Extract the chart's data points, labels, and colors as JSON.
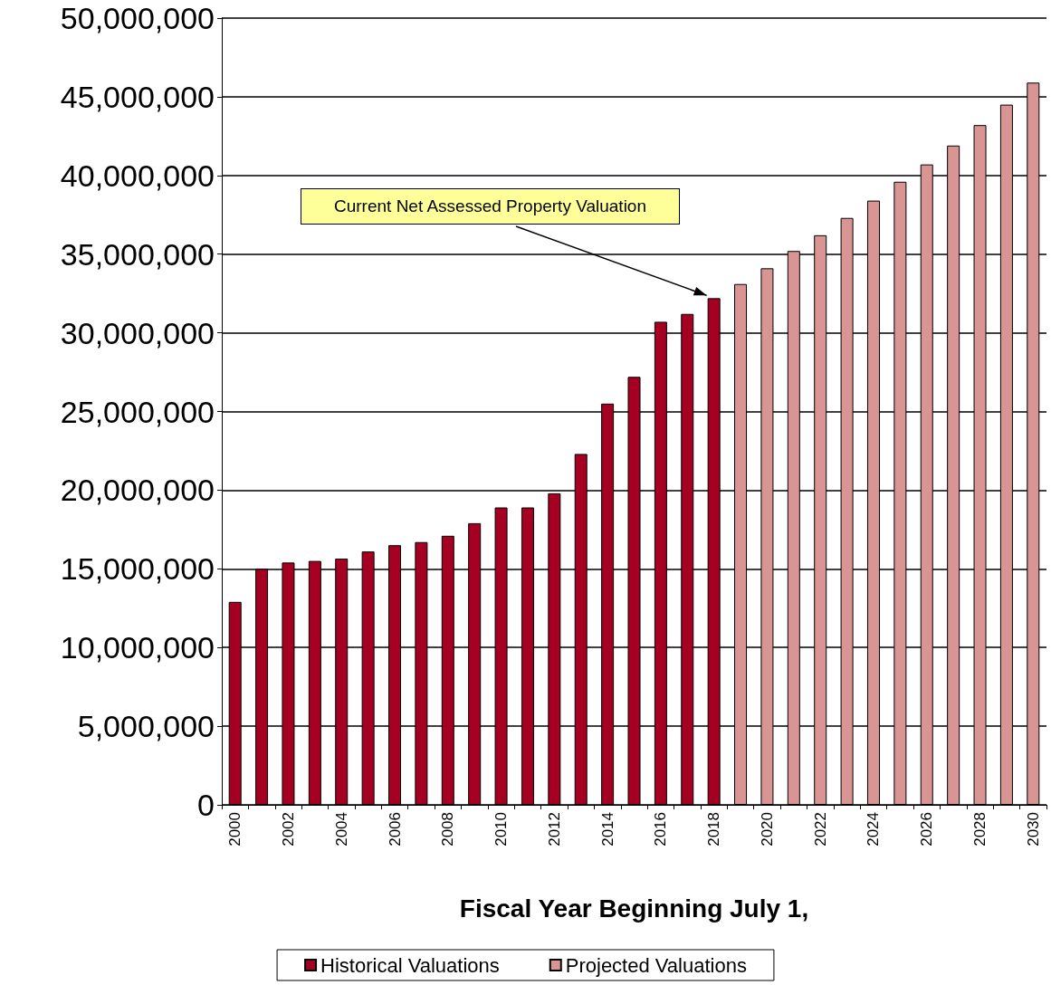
{
  "chart_data": {
    "type": "bar",
    "xlabel": "Fiscal Year Beginning July 1,",
    "categories": [
      "2000",
      null,
      "2002",
      null,
      "2004",
      null,
      "2006",
      null,
      "2008",
      null,
      "2010",
      null,
      "2012",
      null,
      "2014",
      null,
      "2016",
      null,
      "2018",
      null,
      "2020",
      null,
      "2022",
      null,
      "2024",
      null,
      "2026",
      null,
      "2028",
      null,
      "2030"
    ],
    "series": [
      {
        "name": "Historical Valuations",
        "color": "#a50021",
        "values": [
          12900000,
          15000000,
          15400000,
          15500000,
          15650000,
          16100000,
          16500000,
          16700000,
          17100000,
          17900000,
          18900000,
          18900000,
          19800000,
          22300000,
          25500000,
          27200000,
          30700000,
          31200000,
          32200000,
          null,
          null,
          null,
          null,
          null,
          null,
          null,
          null,
          null,
          null,
          null,
          null
        ]
      },
      {
        "name": "Projected Valuations",
        "color": "#d99594",
        "values": [
          null,
          null,
          null,
          null,
          null,
          null,
          null,
          null,
          null,
          null,
          null,
          null,
          null,
          null,
          null,
          null,
          null,
          null,
          null,
          33100000,
          34100000,
          35200000,
          36200000,
          37300000,
          38400000,
          39600000,
          40700000,
          41900000,
          43200000,
          44500000,
          45900000
        ]
      }
    ],
    "ylim": [
      0,
      50000000
    ],
    "yticks": [
      0,
      {
        "value": 5000000,
        "label": "5,000,000"
      },
      {
        "value": 10000000,
        "label": "10,000,000"
      },
      {
        "value": 15000000,
        "label": "15,000,000"
      },
      {
        "value": 20000000,
        "label": "20,000,000"
      },
      {
        "value": 25000000,
        "label": "25,000,000"
      },
      {
        "value": 30000000,
        "label": "30,000,000"
      },
      {
        "value": 35000000,
        "label": "35,000,000"
      },
      {
        "value": 40000000,
        "label": "40,000,000"
      },
      {
        "value": 45000000,
        "label": "45,000,000"
      },
      {
        "value": 50000000,
        "label": "50,000,000"
      }
    ],
    "grid": "y",
    "legend": "bottom",
    "annotations": [
      {
        "text": "Current Net Assessed Property Valuation",
        "x": "2018",
        "y": 32200000
      }
    ]
  }
}
